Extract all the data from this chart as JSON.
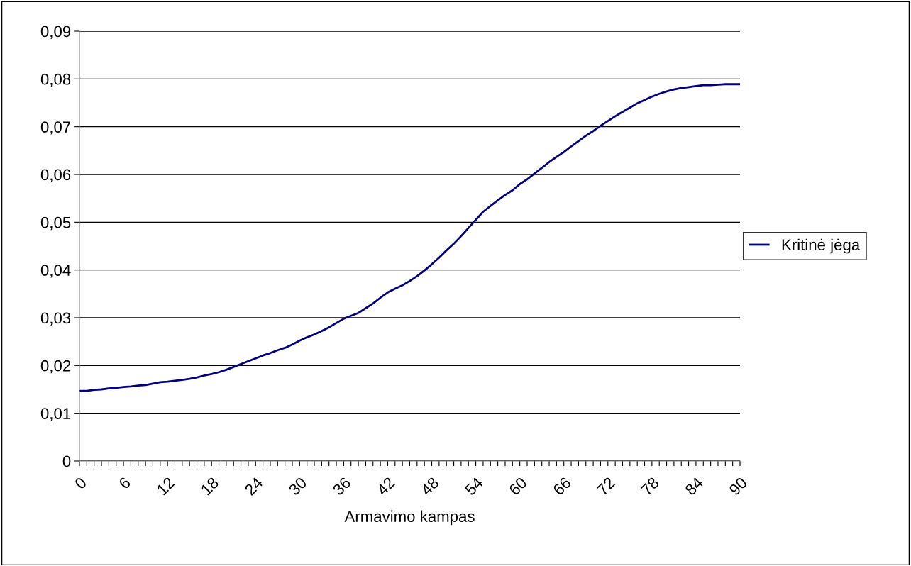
{
  "chart_data": {
    "type": "line",
    "xlabel": "Armavimo kampas",
    "categories": [
      "0",
      null,
      null,
      null,
      null,
      null,
      "6",
      null,
      null,
      null,
      null,
      null,
      "12",
      null,
      null,
      null,
      null,
      null,
      "18",
      null,
      null,
      null,
      null,
      null,
      "24",
      null,
      null,
      null,
      null,
      null,
      "30",
      null,
      null,
      null,
      null,
      null,
      "36",
      null,
      null,
      null,
      null,
      null,
      "42",
      null,
      null,
      null,
      null,
      null,
      "48",
      null,
      null,
      null,
      null,
      null,
      "54",
      null,
      null,
      null,
      null,
      null,
      "60",
      null,
      null,
      null,
      null,
      null,
      "66",
      null,
      null,
      null,
      null,
      null,
      "72",
      null,
      null,
      null,
      null,
      null,
      "78",
      null,
      null,
      null,
      null,
      null,
      "84",
      null,
      null,
      null,
      null,
      null,
      "90"
    ],
    "series": [
      {
        "name": "Kritinė jėga",
        "color": "#000080",
        "values": [
          0.0147,
          0.0147,
          0.0149,
          0.015,
          0.0152,
          0.0153,
          0.0155,
          0.0156,
          0.0158,
          0.0159,
          0.0162,
          0.0165,
          0.0166,
          0.0168,
          0.017,
          0.0172,
          0.0175,
          0.0179,
          0.0182,
          0.0186,
          0.0191,
          0.0197,
          0.0203,
          0.0209,
          0.0215,
          0.0221,
          0.0226,
          0.0232,
          0.0237,
          0.0244,
          0.0252,
          0.0259,
          0.0265,
          0.0272,
          0.028,
          0.0289,
          0.0298,
          0.0304,
          0.031,
          0.032,
          0.033,
          0.0342,
          0.0353,
          0.0361,
          0.0368,
          0.0377,
          0.0387,
          0.0399,
          0.0412,
          0.0426,
          0.0441,
          0.0455,
          0.0471,
          0.0488,
          0.0505,
          0.0522,
          0.0534,
          0.0546,
          0.0557,
          0.0567,
          0.058,
          0.059,
          0.0602,
          0.0614,
          0.0626,
          0.0637,
          0.0647,
          0.0659,
          0.067,
          0.0681,
          0.0691,
          0.0702,
          0.0712,
          0.0722,
          0.0731,
          0.074,
          0.0749,
          0.0756,
          0.0763,
          0.0769,
          0.0774,
          0.0778,
          0.0781,
          0.0783,
          0.0785,
          0.0787,
          0.0787,
          0.0788,
          0.0789,
          0.0789,
          0.0789
        ]
      }
    ],
    "ylim": [
      0,
      0.09
    ],
    "yticks": [
      0,
      {
        "value": 0.01,
        "label": "0,01"
      },
      {
        "value": 0.02,
        "label": "0,02"
      },
      {
        "value": 0.03,
        "label": "0,03"
      },
      {
        "value": 0.04,
        "label": "0,04"
      },
      {
        "value": 0.05,
        "label": "0,05"
      },
      {
        "value": 0.06,
        "label": "0,06"
      },
      {
        "value": 0.07,
        "label": "0,07"
      },
      {
        "value": 0.08,
        "label": "0,08"
      },
      {
        "value": 0.09,
        "label": "0,09"
      }
    ],
    "grid": "y",
    "legend": "right",
    "line_style": "solid"
  }
}
